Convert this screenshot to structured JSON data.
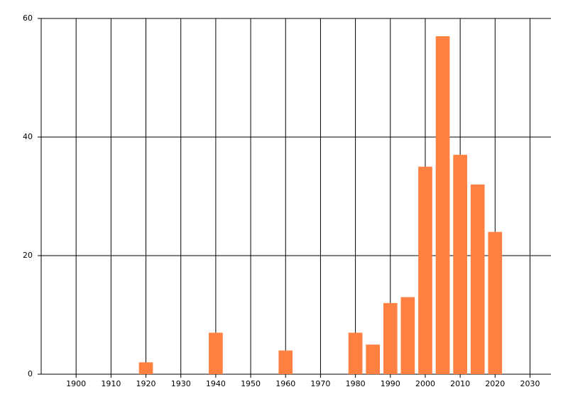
{
  "chart_data": {
    "type": "bar",
    "x": [
      1920,
      1940,
      1960,
      1980,
      1985,
      1990,
      1995,
      2000,
      2005,
      2010,
      2015,
      2020
    ],
    "values": [
      2,
      7,
      4,
      7,
      5,
      12,
      13,
      35,
      57,
      37,
      32,
      24
    ],
    "color": "#ff8040",
    "xlim": [
      1890,
      2036
    ],
    "xticks": [
      1900,
      1910,
      1920,
      1930,
      1940,
      1950,
      1960,
      1970,
      1980,
      1990,
      2000,
      2010,
      2020,
      2030
    ],
    "ylim": [
      0,
      60
    ],
    "yticks": [
      0,
      20,
      40,
      60
    ],
    "grid": true
  }
}
